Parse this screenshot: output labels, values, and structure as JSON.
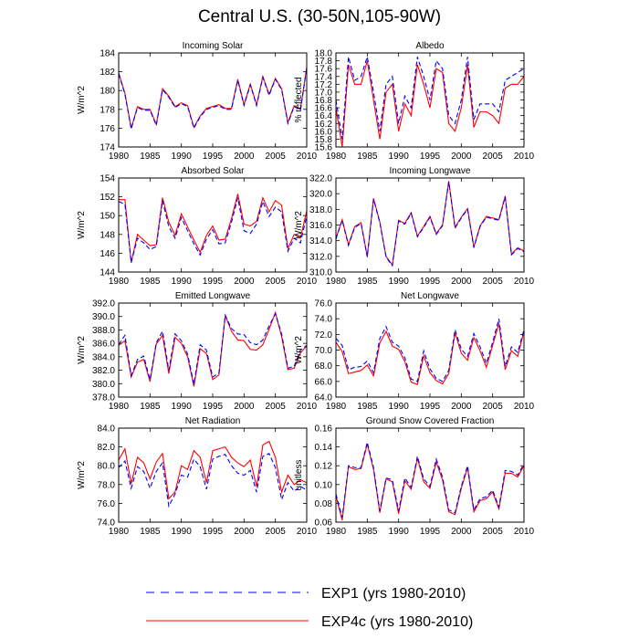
{
  "title": "Central U.S. (30-50N,105-90W)",
  "legend": [
    {
      "label": "EXP1 (yrs 1980-2010)",
      "color": "#0000ff",
      "dash": true
    },
    {
      "label": "EXP4c (yrs 1980-2010)",
      "color": "#ff0000",
      "dash": false
    }
  ],
  "chart_data": [
    {
      "type": "line",
      "title": "Incoming Solar",
      "ylabel": "W/m^2",
      "xlim": [
        1980,
        2010
      ],
      "ylim": [
        174,
        184
      ],
      "yticks": [
        174,
        176,
        178,
        180,
        182,
        184
      ],
      "ytick_format": 0,
      "x": [
        1980,
        1981,
        1982,
        1983,
        1984,
        1985,
        1986,
        1987,
        1988,
        1989,
        1990,
        1991,
        1992,
        1993,
        1994,
        1995,
        1996,
        1997,
        1998,
        1999,
        2000,
        2001,
        2002,
        2003,
        2004,
        2005,
        2006,
        2007,
        2008,
        2009,
        2010
      ],
      "series": [
        {
          "name": "EXP1",
          "values": [
            181.8,
            179.6,
            175.9,
            178.2,
            177.9,
            177.9,
            176.3,
            180.1,
            179.3,
            178.2,
            178.6,
            178.3,
            176.0,
            177.2,
            178.0,
            178.2,
            178.4,
            178.0,
            178.0,
            181.1,
            178.4,
            180.6,
            178.4,
            181.4,
            179.5,
            181.2,
            180.1,
            176.5,
            178.3,
            177.9,
            182.4
          ]
        },
        {
          "name": "EXP4c",
          "values": [
            181.9,
            179.7,
            176.0,
            178.3,
            178.0,
            178.0,
            176.4,
            180.2,
            179.4,
            178.3,
            178.7,
            178.4,
            176.1,
            177.3,
            178.1,
            178.3,
            178.5,
            178.1,
            178.1,
            181.2,
            178.5,
            180.7,
            178.5,
            181.5,
            179.6,
            181.3,
            180.2,
            176.6,
            178.4,
            178.0,
            182.5
          ]
        }
      ]
    },
    {
      "type": "line",
      "title": "Albedo",
      "ylabel": "% reflected",
      "xlim": [
        1980,
        2010
      ],
      "ylim": [
        15.6,
        18.0
      ],
      "yticks": [
        15.6,
        15.8,
        16.0,
        16.2,
        16.4,
        16.6,
        16.8,
        17.0,
        17.2,
        17.4,
        17.6,
        17.8,
        18.0
      ],
      "ytick_format": 1,
      "x": [
        1980,
        1981,
        1982,
        1983,
        1984,
        1985,
        1986,
        1987,
        1988,
        1989,
        1990,
        1991,
        1992,
        1993,
        1994,
        1995,
        1996,
        1997,
        1998,
        1999,
        2000,
        2001,
        2002,
        2003,
        2004,
        2005,
        2006,
        2007,
        2008,
        2009,
        2010
      ],
      "series": [
        {
          "name": "EXP1",
          "values": [
            16.8,
            15.8,
            17.9,
            17.3,
            17.4,
            17.9,
            17.0,
            16.0,
            17.2,
            17.4,
            16.2,
            16.9,
            16.6,
            17.9,
            17.4,
            16.8,
            17.8,
            17.6,
            16.4,
            16.2,
            16.8,
            17.9,
            16.3,
            16.7,
            16.7,
            16.7,
            16.5,
            17.3,
            17.4,
            17.5,
            17.6
          ]
        },
        {
          "name": "EXP4c",
          "values": [
            16.6,
            15.6,
            17.7,
            17.2,
            17.2,
            17.8,
            16.8,
            15.8,
            17.0,
            17.2,
            16.0,
            16.7,
            16.4,
            17.7,
            17.2,
            16.6,
            17.6,
            17.5,
            16.2,
            16.0,
            16.6,
            17.7,
            16.1,
            16.5,
            16.5,
            16.4,
            16.2,
            17.1,
            17.2,
            17.2,
            17.4
          ]
        }
      ]
    },
    {
      "type": "line",
      "title": "Absorbed Solar",
      "ylabel": "W/m^2",
      "xlim": [
        1980,
        2010
      ],
      "ylim": [
        144,
        154
      ],
      "yticks": [
        144,
        146,
        148,
        150,
        152,
        154
      ],
      "ytick_format": 0,
      "x": [
        1980,
        1981,
        1982,
        1983,
        1984,
        1985,
        1986,
        1987,
        1988,
        1989,
        1990,
        1991,
        1992,
        1993,
        1994,
        1995,
        1996,
        1997,
        1998,
        1999,
        2000,
        2001,
        2002,
        2003,
        2004,
        2005,
        2006,
        2007,
        2008,
        2009,
        2010
      ],
      "series": [
        {
          "name": "EXP1",
          "values": [
            151.5,
            151.2,
            145.0,
            147.6,
            147.1,
            146.4,
            146.7,
            151.6,
            148.8,
            147.6,
            149.8,
            148.4,
            147.0,
            145.8,
            147.5,
            148.5,
            147.0,
            147.1,
            149.3,
            151.9,
            148.4,
            148.1,
            149.1,
            151.5,
            149.9,
            150.9,
            150.4,
            146.2,
            147.6,
            147.1,
            150.0
          ]
        },
        {
          "name": "EXP4c",
          "values": [
            151.7,
            151.7,
            145.0,
            148.0,
            147.4,
            146.8,
            146.9,
            151.9,
            149.3,
            147.9,
            150.2,
            148.8,
            147.4,
            146.1,
            147.9,
            148.9,
            147.4,
            147.5,
            149.7,
            152.3,
            149.1,
            148.9,
            149.4,
            151.9,
            150.4,
            151.6,
            151.1,
            146.5,
            148.0,
            147.6,
            150.5
          ]
        }
      ]
    },
    {
      "type": "line",
      "title": "Incoming Longwave",
      "ylabel": "W/m^2",
      "xlim": [
        1980,
        2010
      ],
      "ylim": [
        310,
        322
      ],
      "yticks": [
        310,
        312,
        314,
        316,
        318,
        320,
        322
      ],
      "ytick_format": 1,
      "x": [
        1980,
        1981,
        1982,
        1983,
        1984,
        1985,
        1986,
        1987,
        1988,
        1989,
        1990,
        1991,
        1992,
        1993,
        1994,
        1995,
        1996,
        1997,
        1998,
        1999,
        2000,
        2001,
        2002,
        2003,
        2004,
        2005,
        2006,
        2007,
        2008,
        2009,
        2010
      ],
      "series": [
        {
          "name": "EXP1",
          "values": [
            314.2,
            316.6,
            313.4,
            315.7,
            316.2,
            311.9,
            319.3,
            316.3,
            311.9,
            310.8,
            316.5,
            316.1,
            317.5,
            314.5,
            315.7,
            317.0,
            314.8,
            315.9,
            321.5,
            315.6,
            316.9,
            318.0,
            313.1,
            315.8,
            317.0,
            316.8,
            316.6,
            319.6,
            312.2,
            313.0,
            312.6
          ]
        },
        {
          "name": "EXP4c",
          "values": [
            314.3,
            316.7,
            313.5,
            315.8,
            316.3,
            312.0,
            319.4,
            316.4,
            312.0,
            310.9,
            316.6,
            316.2,
            317.6,
            314.6,
            315.8,
            317.1,
            314.9,
            316.0,
            321.6,
            315.7,
            317.0,
            318.1,
            313.2,
            315.9,
            317.1,
            316.9,
            316.7,
            319.7,
            312.3,
            313.1,
            312.7
          ]
        }
      ]
    },
    {
      "type": "line",
      "title": "Emitted Longwave",
      "ylabel": "W/m^2",
      "xlim": [
        1980,
        2010
      ],
      "ylim": [
        378,
        392
      ],
      "yticks": [
        378,
        380,
        382,
        384,
        386,
        388,
        390,
        392
      ],
      "ytick_format": 1,
      "x": [
        1980,
        1981,
        1982,
        1983,
        1984,
        1985,
        1986,
        1987,
        1988,
        1989,
        1990,
        1991,
        1992,
        1993,
        1994,
        1995,
        1996,
        1997,
        1998,
        1999,
        2000,
        2001,
        2002,
        2003,
        2004,
        2005,
        2006,
        2007,
        2008,
        2009,
        2010
      ],
      "series": [
        {
          "name": "EXP1",
          "values": [
            385.8,
            387.2,
            381.2,
            383.6,
            384.1,
            380.6,
            386.1,
            387.8,
            382.0,
            387.4,
            386.4,
            384.4,
            379.9,
            385.8,
            385.0,
            381.0,
            381.6,
            390.2,
            388.2,
            387.4,
            387.3,
            386.1,
            385.8,
            386.5,
            388.6,
            390.4,
            387.4,
            382.3,
            382.6,
            385.0,
            385.7
          ]
        },
        {
          "name": "EXP4c",
          "values": [
            385.7,
            386.4,
            381.0,
            383.2,
            383.6,
            380.3,
            385.9,
            387.2,
            381.5,
            386.9,
            386.0,
            384.0,
            379.6,
            385.2,
            384.5,
            380.6,
            381.3,
            390.1,
            387.8,
            386.5,
            386.4,
            385.1,
            385.0,
            385.8,
            388.1,
            390.6,
            387.0,
            382.1,
            382.3,
            384.6,
            385.6
          ]
        }
      ]
    },
    {
      "type": "line",
      "title": "Net Longwave",
      "ylabel": "W/m^2",
      "xlim": [
        1980,
        2010
      ],
      "ylim": [
        64,
        76
      ],
      "yticks": [
        64,
        66,
        68,
        70,
        72,
        74,
        76
      ],
      "ytick_format": 1,
      "x": [
        1980,
        1981,
        1982,
        1983,
        1984,
        1985,
        1986,
        1987,
        1988,
        1989,
        1990,
        1991,
        1992,
        1993,
        1994,
        1995,
        1996,
        1997,
        1998,
        1999,
        2000,
        2001,
        2002,
        2003,
        2004,
        2005,
        2006,
        2007,
        2008,
        2009,
        2010
      ],
      "series": [
        {
          "name": "EXP1",
          "values": [
            71.5,
            70.6,
            67.5,
            67.8,
            67.9,
            68.6,
            67.1,
            71.5,
            73.0,
            71.0,
            70.5,
            69.0,
            66.3,
            66.0,
            69.9,
            67.6,
            66.4,
            66.0,
            67.4,
            72.6,
            70.1,
            69.2,
            72.1,
            70.4,
            68.3,
            71.0,
            74.0,
            67.9,
            70.4,
            69.7,
            72.6
          ]
        },
        {
          "name": "EXP4c",
          "values": [
            71.0,
            69.8,
            67.0,
            67.2,
            67.4,
            68.1,
            66.7,
            70.9,
            72.4,
            70.5,
            70.1,
            68.5,
            65.9,
            65.6,
            69.3,
            67.1,
            66.1,
            65.7,
            67.0,
            72.2,
            69.6,
            68.7,
            71.6,
            69.9,
            67.8,
            70.6,
            73.4,
            67.5,
            69.9,
            69.2,
            72.4
          ]
        }
      ]
    },
    {
      "type": "line",
      "title": "Net Radiation",
      "ylabel": "W/m^2",
      "xlim": [
        1980,
        2010
      ],
      "ylim": [
        74,
        84
      ],
      "yticks": [
        74,
        76,
        78,
        80,
        82,
        84
      ],
      "ytick_format": 1,
      "x": [
        1980,
        1981,
        1982,
        1983,
        1984,
        1985,
        1986,
        1987,
        1988,
        1989,
        1990,
        1991,
        1992,
        1993,
        1994,
        1995,
        1996,
        1997,
        1998,
        1999,
        2000,
        2001,
        2002,
        2003,
        2004,
        2005,
        2006,
        2007,
        2008,
        2009,
        2010
      ],
      "series": [
        {
          "name": "EXP1",
          "values": [
            79.8,
            80.5,
            77.6,
            79.9,
            79.4,
            77.6,
            79.4,
            80.3,
            75.7,
            77.0,
            79.0,
            78.8,
            80.7,
            79.9,
            77.5,
            80.7,
            81.0,
            81.2,
            80.0,
            79.2,
            79.0,
            79.5,
            77.2,
            81.0,
            81.3,
            79.8,
            76.4,
            78.2,
            77.3,
            77.8,
            77.4
          ]
        },
        {
          "name": "EXP4c",
          "values": [
            80.6,
            81.8,
            78.1,
            80.9,
            80.3,
            78.6,
            80.4,
            81.3,
            76.5,
            77.2,
            80.0,
            79.6,
            81.6,
            80.9,
            78.2,
            81.6,
            81.8,
            82.0,
            80.9,
            80.3,
            79.9,
            80.6,
            77.8,
            82.2,
            82.6,
            80.9,
            77.2,
            79.0,
            78.0,
            78.5,
            78.2
          ]
        }
      ]
    },
    {
      "type": "line",
      "title": "Ground Snow Covered Fraction",
      "ylabel": "unitless",
      "xlim": [
        1980,
        2010
      ],
      "ylim": [
        0.06,
        0.16
      ],
      "yticks": [
        0.06,
        0.08,
        0.1,
        0.12,
        0.14,
        0.16
      ],
      "ytick_format": 2,
      "x": [
        1980,
        1981,
        1982,
        1983,
        1984,
        1985,
        1986,
        1987,
        1988,
        1989,
        1990,
        1991,
        1992,
        1993,
        1994,
        1995,
        1996,
        1997,
        1998,
        1999,
        2000,
        2001,
        2002,
        2003,
        2004,
        2005,
        2006,
        2007,
        2008,
        2009,
        2010
      ],
      "series": [
        {
          "name": "EXP1",
          "values": [
            0.09,
            0.065,
            0.12,
            0.118,
            0.118,
            0.145,
            0.118,
            0.072,
            0.107,
            0.105,
            0.072,
            0.107,
            0.097,
            0.13,
            0.106,
            0.098,
            0.127,
            0.108,
            0.073,
            0.07,
            0.098,
            0.12,
            0.073,
            0.085,
            0.087,
            0.094,
            0.076,
            0.115,
            0.114,
            0.11,
            0.122
          ]
        },
        {
          "name": "EXP4c",
          "values": [
            0.088,
            0.062,
            0.119,
            0.116,
            0.117,
            0.143,
            0.116,
            0.07,
            0.106,
            0.103,
            0.069,
            0.104,
            0.095,
            0.128,
            0.103,
            0.096,
            0.124,
            0.105,
            0.071,
            0.068,
            0.096,
            0.118,
            0.071,
            0.083,
            0.085,
            0.092,
            0.074,
            0.112,
            0.112,
            0.108,
            0.12
          ]
        }
      ]
    }
  ]
}
